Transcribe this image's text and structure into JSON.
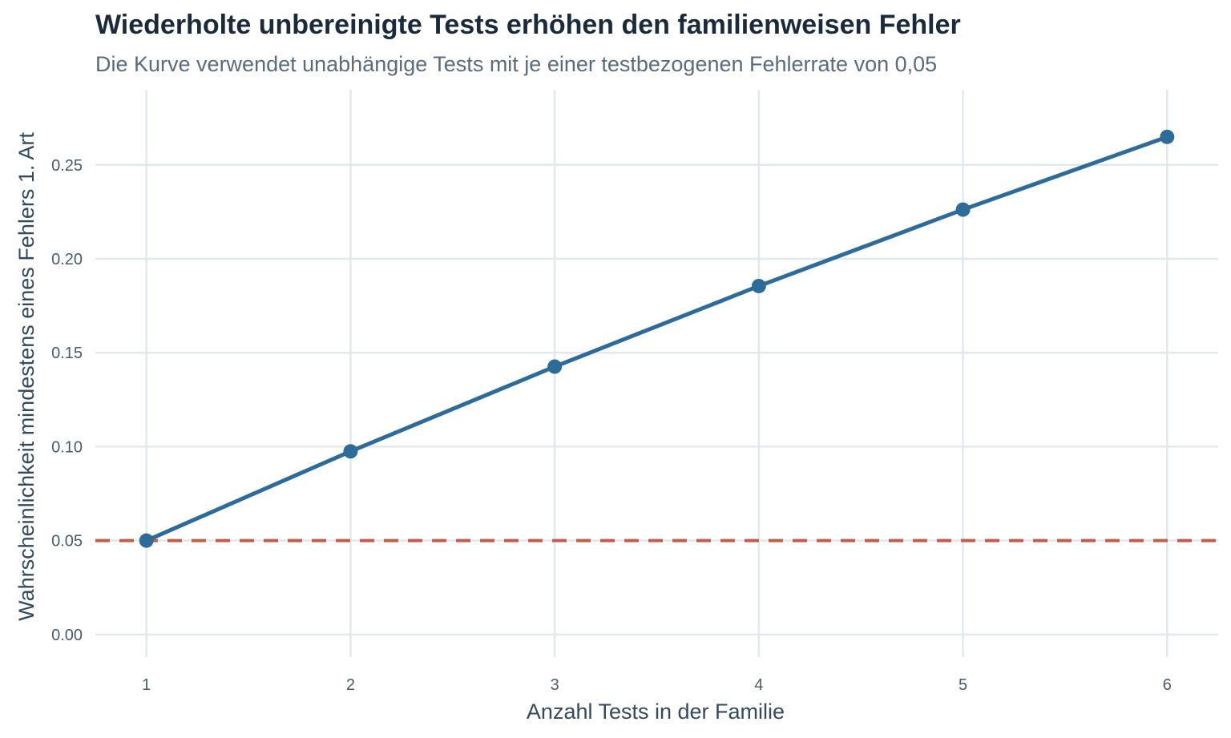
{
  "chart_data": {
    "type": "line",
    "title": "Wiederholte unbereinigte Tests erhöhen den familienweisen Fehler",
    "subtitle": "Die Kurve verwendet unabhängige Tests mit je einer testbezogenen Fehlerrate von 0,05",
    "xlabel": "Anzahl Tests in der Familie",
    "ylabel": "Wahrscheinlichkeit mindestens eines Fehlers 1. Art",
    "x": [
      1,
      2,
      3,
      4,
      5,
      6
    ],
    "x_tick_labels": [
      "1",
      "2",
      "3",
      "4",
      "5",
      "6"
    ],
    "y_ticks": [
      0,
      0.05,
      0.1,
      0.15,
      0.2,
      0.25
    ],
    "y_tick_labels": [
      "0.00",
      "0.05",
      "0.10",
      "0.15",
      "0.20",
      "0.25"
    ],
    "xlim": [
      0.75,
      6.25
    ],
    "ylim": [
      -0.012,
      0.29
    ],
    "series": [
      {
        "values": [
          0.05,
          0.0975,
          0.1426,
          0.1855,
          0.2262,
          0.2649
        ],
        "color": "#2e6b99"
      }
    ],
    "reference_line": {
      "y": 0.05,
      "style": "dashed",
      "color": "#c0604a"
    },
    "grid": true,
    "legend": "none"
  }
}
